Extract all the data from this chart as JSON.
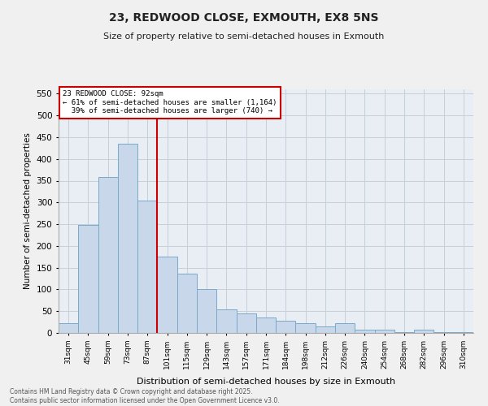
{
  "title_line1": "23, REDWOOD CLOSE, EXMOUTH, EX8 5NS",
  "title_line2": "Size of property relative to semi-detached houses in Exmouth",
  "xlabel": "Distribution of semi-detached houses by size in Exmouth",
  "ylabel": "Number of semi-detached properties",
  "categories": [
    "31sqm",
    "45sqm",
    "59sqm",
    "73sqm",
    "87sqm",
    "101sqm",
    "115sqm",
    "129sqm",
    "143sqm",
    "157sqm",
    "171sqm",
    "184sqm",
    "198sqm",
    "212sqm",
    "226sqm",
    "240sqm",
    "254sqm",
    "268sqm",
    "282sqm",
    "296sqm",
    "310sqm"
  ],
  "values": [
    22,
    248,
    358,
    435,
    305,
    175,
    137,
    100,
    55,
    45,
    35,
    28,
    22,
    15,
    22,
    8,
    8,
    2,
    8,
    2,
    2
  ],
  "bar_color": "#c8d8ea",
  "bar_edge_color": "#7aaac8",
  "vline_color": "#cc0000",
  "vline_x_index": 4.5,
  "property_label": "23 REDWOOD CLOSE: 92sqm",
  "smaller_label": "← 61% of semi-detached houses are smaller (1,164)",
  "larger_label": "39% of semi-detached houses are larger (740) →",
  "annotation_box_color": "#cc0000",
  "ylim": [
    0,
    560
  ],
  "yticks": [
    0,
    50,
    100,
    150,
    200,
    250,
    300,
    350,
    400,
    450,
    500,
    550
  ],
  "grid_color": "#c5d0da",
  "background_color": "#e8eef4",
  "figure_background": "#f0f0f0",
  "footer_line1": "Contains HM Land Registry data © Crown copyright and database right 2025.",
  "footer_line2": "Contains public sector information licensed under the Open Government Licence v3.0."
}
